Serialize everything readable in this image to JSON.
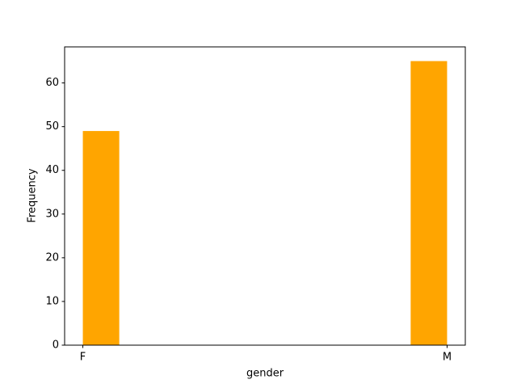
{
  "chart_data": {
    "type": "histogram",
    "x_label": "gender",
    "y_label": "Frequency",
    "bins": [
      0,
      0.1,
      0.2,
      0.3,
      0.4,
      0.5,
      0.6,
      0.7,
      0.8,
      0.9,
      1.0
    ],
    "counts": [
      49,
      0,
      0,
      0,
      0,
      0,
      0,
      0,
      0,
      65
    ],
    "color": "#ffa500",
    "xlim": [
      -0.05,
      1.05
    ],
    "xticks": [
      {
        "value": 0,
        "label": "F"
      },
      {
        "value": 1,
        "label": "M"
      }
    ],
    "ylim": [
      0,
      68.25
    ],
    "yticks": [
      0,
      10,
      20,
      30,
      40,
      50,
      60
    ],
    "grid": false
  }
}
